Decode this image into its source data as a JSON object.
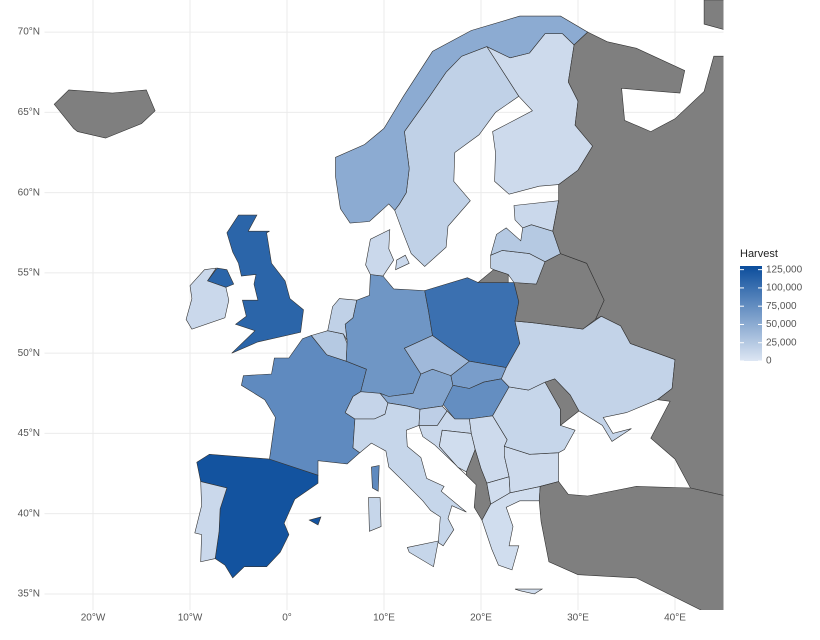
{
  "chart_data": {
    "type": "choropleth",
    "xlim": [
      -25,
      45
    ],
    "ylim": [
      34,
      72
    ],
    "xticks": [
      {
        "value": -20,
        "label": "20°W"
      },
      {
        "value": -10,
        "label": "10°W"
      },
      {
        "value": 0,
        "label": "0°"
      },
      {
        "value": 10,
        "label": "10°E"
      },
      {
        "value": 20,
        "label": "20°E"
      },
      {
        "value": 30,
        "label": "30°E"
      },
      {
        "value": 40,
        "label": "40°E"
      }
    ],
    "yticks": [
      {
        "value": 35,
        "label": "35°N"
      },
      {
        "value": 40,
        "label": "40°N"
      },
      {
        "value": 45,
        "label": "45°N"
      },
      {
        "value": 50,
        "label": "50°N"
      },
      {
        "value": 55,
        "label": "55°N"
      },
      {
        "value": 60,
        "label": "60°N"
      },
      {
        "value": 65,
        "label": "65°N"
      },
      {
        "value": 70,
        "label": "70°N"
      }
    ],
    "grid": true,
    "values": [
      125000,
      12000,
      78000,
      25000,
      18000,
      68000,
      12000,
      15000,
      55000,
      38000,
      100000,
      62000,
      75000,
      20000,
      12000,
      8000,
      10000,
      null,
      8000,
      8000,
      10000,
      14000,
      null,
      16000,
      null,
      18000,
      null,
      25000,
      12000,
      10000,
      18000,
      50000,
      110000,
      12000,
      14000,
      null,
      null,
      null
    ],
    "legend": {
      "title": "Harvest",
      "position": "right",
      "clim": [
        0,
        130000
      ],
      "ticks": [
        0,
        {
          "value": 25000,
          "label": "25,000"
        },
        {
          "value": 50000,
          "label": "50,000"
        },
        {
          "value": 75000,
          "label": "75,000"
        },
        {
          "value": 100000,
          "label": "100,000"
        },
        {
          "value": 125000,
          "label": "125,000"
        }
      ],
      "low_color": "#dde6f3",
      "high_color": "#0b4d9c",
      "na_color": "#7f7f7f"
    }
  }
}
